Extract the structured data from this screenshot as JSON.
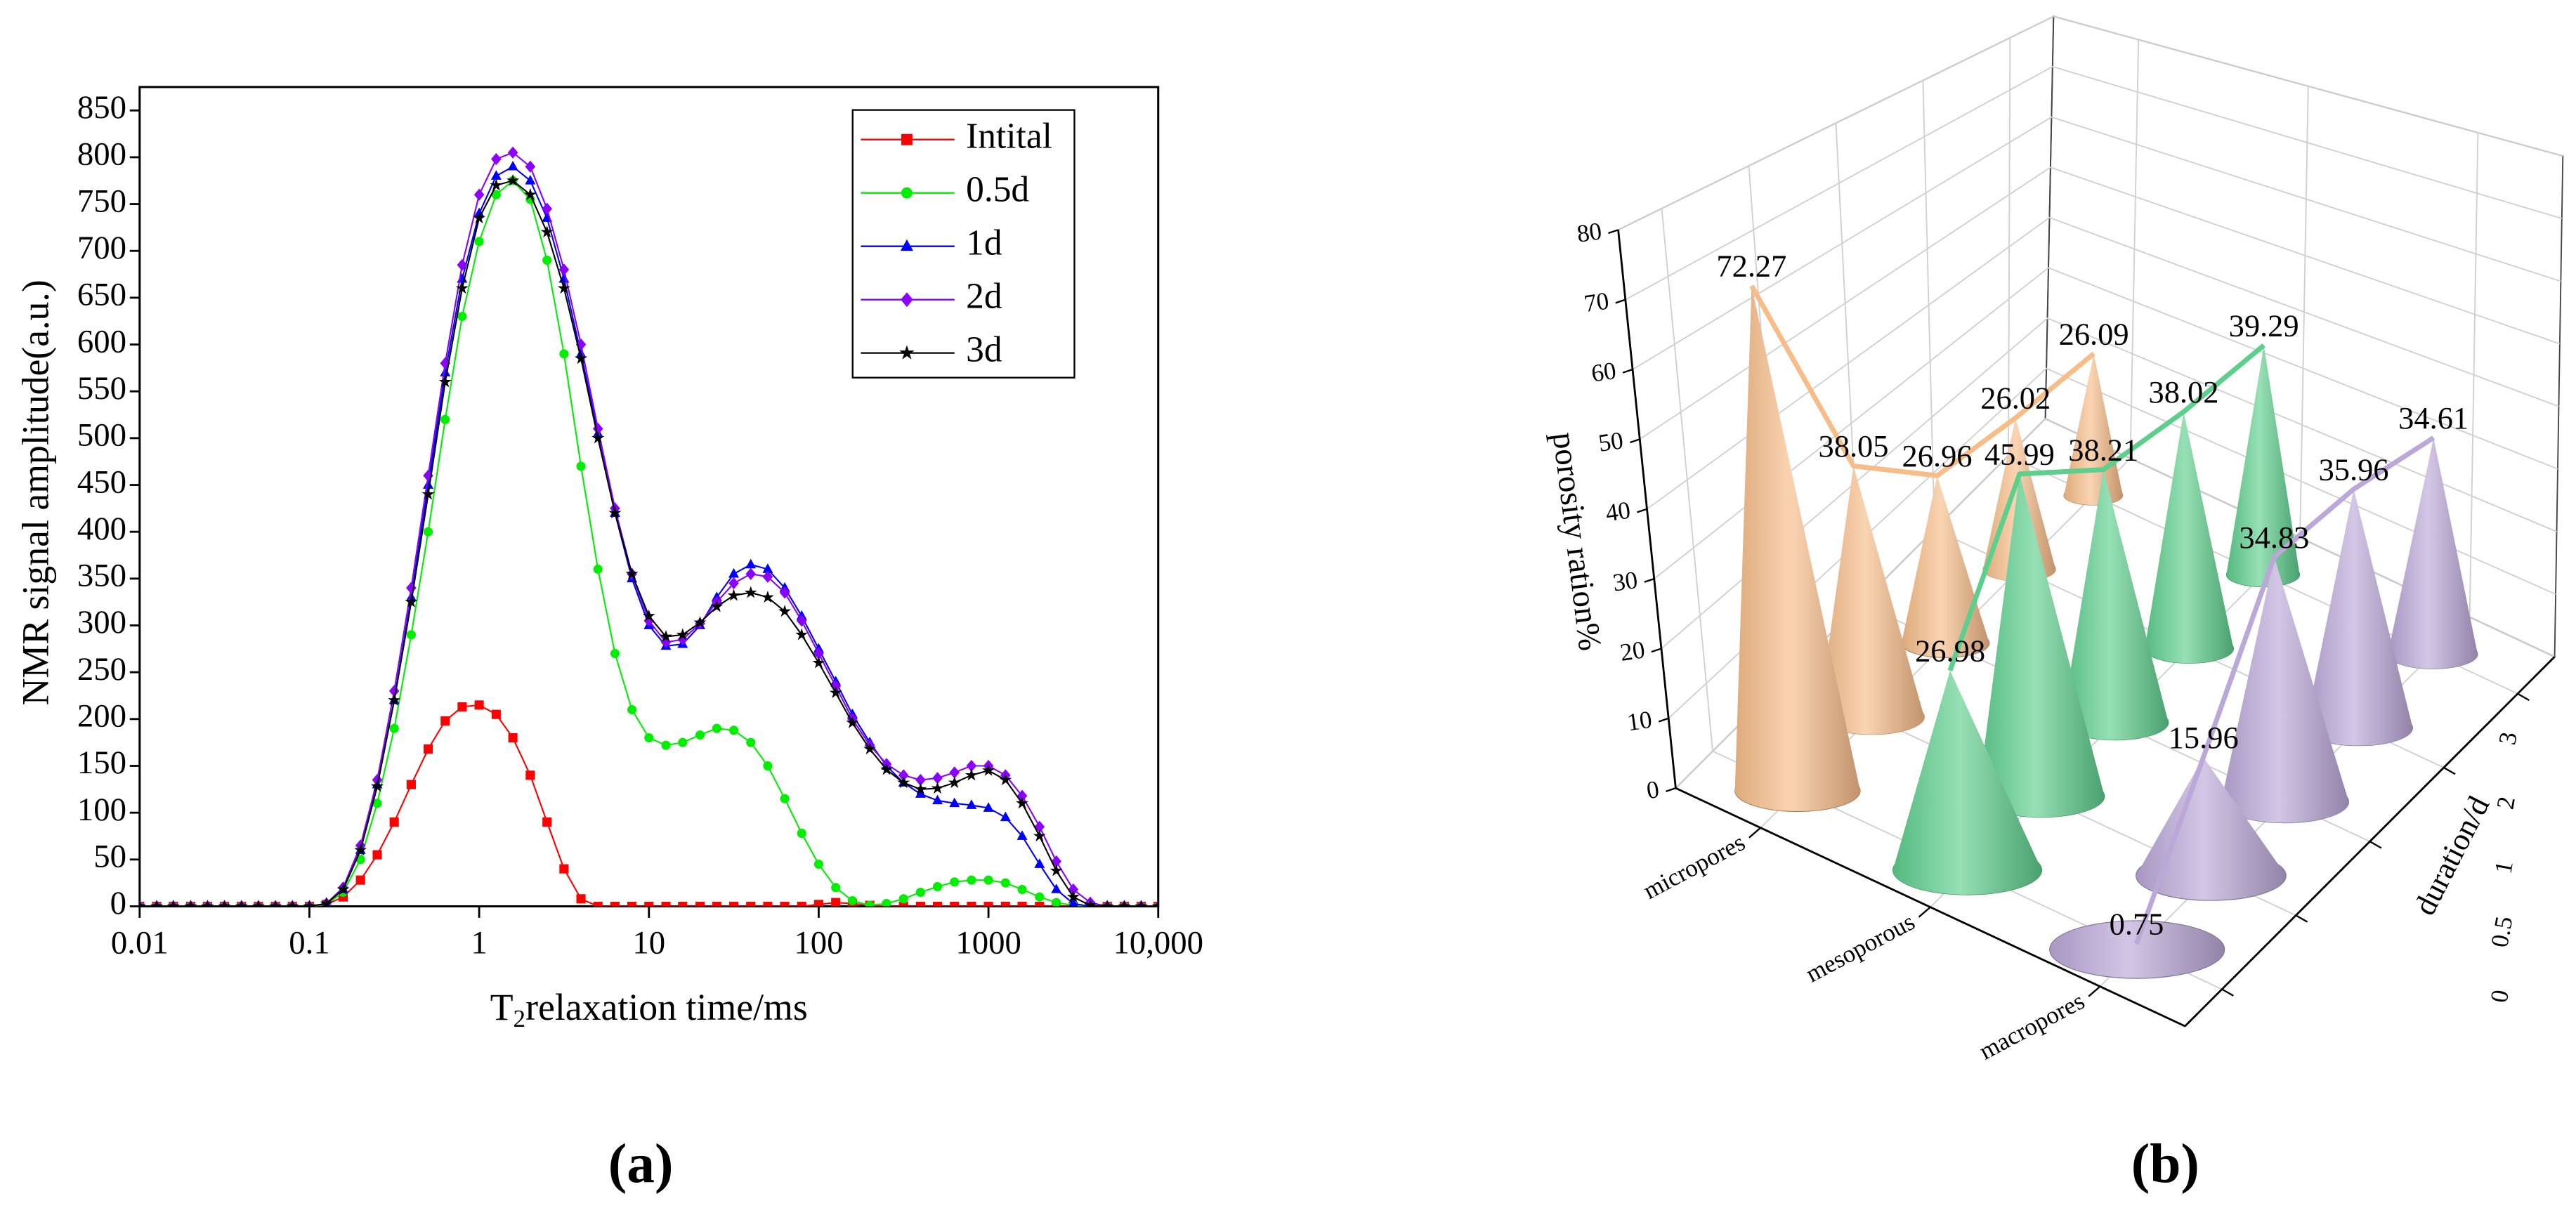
{
  "chart_data": [
    {
      "type": "line",
      "xscale": "log",
      "caption": "(a)",
      "y_label": "NMR signal amplitude(a.u.)",
      "x_label": {
        "main": "T",
        "sub": "2",
        "rest": "relaxation time/ms"
      },
      "xlim": [
        0.01,
        10000
      ],
      "xticks": [
        0.01,
        0.1,
        1,
        10,
        100,
        1000,
        {
          "value": 10000,
          "label": "10,000"
        }
      ],
      "ylim": [
        0,
        875
      ],
      "yticks": [
        0,
        50,
        100,
        150,
        200,
        250,
        300,
        350,
        400,
        450,
        500,
        550,
        600,
        650,
        700,
        750,
        800,
        850
      ],
      "legend": "top-right",
      "x": [
        0.01,
        0.0126,
        0.0158,
        0.02,
        0.0251,
        0.0316,
        0.0398,
        0.0501,
        0.0631,
        0.0794,
        0.1,
        0.126,
        0.158,
        0.2,
        0.251,
        0.316,
        0.398,
        0.501,
        0.631,
        0.794,
        1,
        1.26,
        1.58,
        2,
        2.51,
        3.16,
        3.98,
        5.01,
        6.31,
        7.94,
        10,
        12.6,
        15.8,
        20,
        25.1,
        31.6,
        39.8,
        50.1,
        63.1,
        79.4,
        100,
        126,
        158,
        200,
        251,
        316,
        398,
        501,
        631,
        794,
        1000,
        1260,
        1580,
        2000,
        2510,
        3160,
        3980,
        5010,
        6310,
        7940,
        10000
      ],
      "series": [
        {
          "name": "Intital",
          "color": "#ff0000",
          "marker": "square",
          "values": [
            0,
            0,
            0,
            0,
            0,
            0,
            0,
            0,
            0,
            0,
            0,
            2,
            10,
            28,
            55,
            90,
            130,
            168,
            198,
            213,
            215,
            205,
            180,
            140,
            90,
            40,
            8,
            0,
            0,
            0,
            0,
            0,
            0,
            0,
            0,
            0,
            0,
            0,
            0,
            0,
            2,
            4,
            3,
            1,
            0,
            0,
            0,
            0,
            0,
            0,
            0,
            0,
            0,
            0,
            0,
            0,
            0,
            0,
            0,
            0,
            0
          ]
        },
        {
          "name": "0.5d",
          "color": "#00ee00",
          "marker": "circle",
          "values": [
            0,
            0,
            0,
            0,
            0,
            0,
            0,
            0,
            0,
            0,
            0,
            2,
            15,
            50,
            110,
            190,
            290,
            400,
            520,
            630,
            710,
            760,
            775,
            755,
            690,
            590,
            470,
            360,
            270,
            210,
            180,
            172,
            175,
            183,
            190,
            188,
            175,
            150,
            115,
            78,
            45,
            20,
            6,
            1,
            3,
            8,
            15,
            21,
            26,
            28,
            28,
            25,
            18,
            10,
            4,
            1,
            0,
            0,
            0,
            0,
            0
          ]
        },
        {
          "name": "1d",
          "color": "#0000ff",
          "marker": "triangle",
          "values": [
            0,
            0,
            0,
            0,
            0,
            0,
            0,
            0,
            0,
            0,
            0,
            3,
            18,
            60,
            130,
            220,
            330,
            450,
            570,
            670,
            740,
            780,
            790,
            775,
            735,
            670,
            590,
            505,
            420,
            350,
            300,
            278,
            280,
            300,
            330,
            355,
            365,
            360,
            340,
            310,
            275,
            240,
            205,
            175,
            150,
            132,
            120,
            113,
            110,
            108,
            105,
            95,
            75,
            45,
            18,
            3,
            0,
            0,
            0,
            0,
            0
          ]
        },
        {
          "name": "2d",
          "color": "#8b00ff",
          "marker": "diamond",
          "values": [
            0,
            0,
            0,
            0,
            0,
            0,
            0,
            0,
            0,
            0,
            0,
            3,
            20,
            65,
            135,
            230,
            340,
            460,
            580,
            685,
            760,
            798,
            805,
            790,
            745,
            680,
            600,
            510,
            425,
            355,
            305,
            282,
            285,
            302,
            325,
            345,
            355,
            352,
            335,
            305,
            270,
            235,
            200,
            172,
            152,
            140,
            135,
            137,
            143,
            150,
            150,
            140,
            118,
            85,
            48,
            18,
            4,
            0,
            0,
            0,
            0
          ]
        },
        {
          "name": "3d",
          "color": "#000000",
          "marker": "star",
          "values": [
            0,
            0,
            0,
            0,
            0,
            0,
            0,
            0,
            0,
            0,
            0,
            3,
            18,
            60,
            128,
            220,
            325,
            440,
            560,
            660,
            735,
            770,
            775,
            760,
            720,
            660,
            585,
            500,
            420,
            355,
            310,
            288,
            290,
            303,
            320,
            332,
            335,
            330,
            315,
            290,
            260,
            228,
            196,
            168,
            146,
            132,
            125,
            126,
            132,
            140,
            145,
            135,
            110,
            75,
            38,
            10,
            1,
            0,
            0,
            0,
            0
          ]
        }
      ]
    },
    {
      "type": "cone3d",
      "caption": "(b)",
      "z_label": "porosity ration%",
      "y_label": "duration/d",
      "categories": [
        "micropores",
        "mesoporous",
        "macropores"
      ],
      "durations": [
        0,
        0.5,
        1,
        2,
        3
      ],
      "zlim": [
        0,
        80
      ],
      "zticks": [
        0,
        10,
        20,
        30,
        40,
        50,
        60,
        70,
        80
      ],
      "colors": [
        "#f7bd89",
        "#5dcf8d",
        "#bba8d8"
      ],
      "values": [
        [
          72.27,
          38.05,
          26.96,
          26.02,
          26.09
        ],
        [
          26.98,
          45.99,
          38.21,
          38.02,
          39.29
        ],
        [
          0.75,
          15.96,
          34.83,
          35.96,
          34.61
        ]
      ],
      "grid": true
    }
  ]
}
